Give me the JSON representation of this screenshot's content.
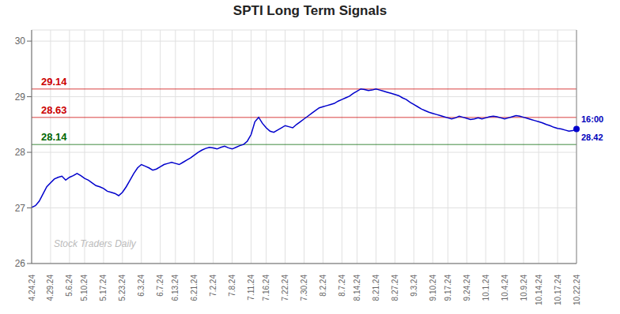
{
  "chart_data": {
    "type": "line",
    "title": "SPTI Long Term Signals",
    "categories": [
      "4.24.24",
      null,
      null,
      null,
      null,
      "4.29.24",
      null,
      null,
      null,
      null,
      "5.6.24",
      null,
      null,
      null,
      "5.10.24",
      null,
      null,
      null,
      null,
      "5.17.24",
      null,
      null,
      null,
      null,
      "5.23.24",
      null,
      null,
      null,
      null,
      "6.3.24",
      null,
      null,
      null,
      null,
      "6.7.24",
      null,
      null,
      null,
      "6.13.24",
      null,
      null,
      null,
      null,
      "6.21.24",
      null,
      null,
      null,
      null,
      "7.2.24",
      null,
      null,
      null,
      null,
      "7.8.24",
      null,
      null,
      null,
      null,
      "7.11.24",
      null,
      null,
      null,
      "7.16.24",
      null,
      null,
      null,
      null,
      "7.22.24",
      null,
      null,
      null,
      null,
      "7.30.24",
      null,
      null,
      null,
      null,
      "8.2.24",
      null,
      null,
      null,
      null,
      "8.7.24",
      null,
      null,
      null,
      "8.14.24",
      null,
      null,
      null,
      null,
      "8.21.24",
      null,
      null,
      null,
      null,
      "8.27.24",
      null,
      null,
      null,
      null,
      "9.3.24",
      null,
      null,
      null,
      null,
      "9.10.24",
      null,
      null,
      null,
      "9.17.24",
      null,
      null,
      null,
      null,
      "9.24.24",
      null,
      null,
      null,
      null,
      "10.1.24",
      null,
      null,
      null,
      null,
      "10.4.24",
      null,
      null,
      null,
      null,
      "10.9.24",
      null,
      null,
      null,
      "10.14.24",
      null,
      null,
      null,
      null,
      "10.17.24",
      null,
      null,
      null,
      null,
      "10.22.24"
    ],
    "values": [
      27.01,
      27.04,
      27.12,
      27.25,
      27.38,
      27.45,
      27.52,
      27.55,
      27.57,
      27.5,
      27.55,
      27.58,
      27.62,
      27.58,
      27.53,
      27.5,
      27.45,
      27.4,
      27.38,
      27.35,
      27.3,
      27.28,
      27.26,
      27.22,
      27.28,
      27.38,
      27.5,
      27.62,
      27.72,
      27.78,
      27.75,
      27.72,
      27.68,
      27.7,
      27.74,
      27.78,
      27.8,
      27.82,
      27.8,
      27.78,
      27.82,
      27.86,
      27.9,
      27.95,
      28.0,
      28.04,
      28.07,
      28.09,
      28.08,
      28.06,
      28.09,
      28.11,
      28.08,
      28.06,
      28.09,
      28.12,
      28.14,
      28.2,
      28.32,
      28.55,
      28.63,
      28.52,
      28.44,
      28.38,
      28.36,
      28.4,
      28.44,
      28.48,
      28.46,
      28.44,
      28.5,
      28.55,
      28.6,
      28.65,
      28.7,
      28.75,
      28.8,
      28.82,
      28.84,
      28.86,
      28.88,
      28.92,
      28.95,
      28.98,
      29.01,
      29.06,
      29.1,
      29.14,
      29.13,
      29.11,
      29.12,
      29.14,
      29.12,
      29.1,
      29.08,
      29.06,
      29.04,
      29.02,
      28.98,
      28.95,
      28.9,
      28.86,
      28.82,
      28.78,
      28.75,
      28.72,
      28.7,
      28.68,
      28.66,
      28.64,
      28.62,
      28.6,
      28.62,
      28.65,
      28.63,
      28.61,
      28.59,
      28.6,
      28.62,
      28.6,
      28.62,
      28.64,
      28.65,
      28.64,
      28.62,
      28.6,
      28.62,
      28.64,
      28.66,
      28.65,
      28.63,
      28.61,
      28.59,
      28.57,
      28.55,
      28.53,
      28.5,
      28.48,
      28.45,
      28.43,
      28.42,
      28.4,
      28.38,
      28.39,
      28.42
    ],
    "color": "#0000cc",
    "ylim": [
      26,
      30.2
    ],
    "yticks": [
      26,
      27,
      28,
      29,
      30
    ],
    "grid": true,
    "reference_lines": [
      {
        "value": 29.14,
        "label": "29.14",
        "color": "#cc0000"
      },
      {
        "value": 28.63,
        "label": "28.63",
        "color": "#cc0000"
      },
      {
        "value": 28.14,
        "label": "28.14",
        "color": "#006600"
      }
    ],
    "end_annotation": {
      "texts": [
        "16:00",
        "28.42"
      ],
      "color": "#0000bb"
    },
    "watermark": "Stock Traders Daily"
  }
}
